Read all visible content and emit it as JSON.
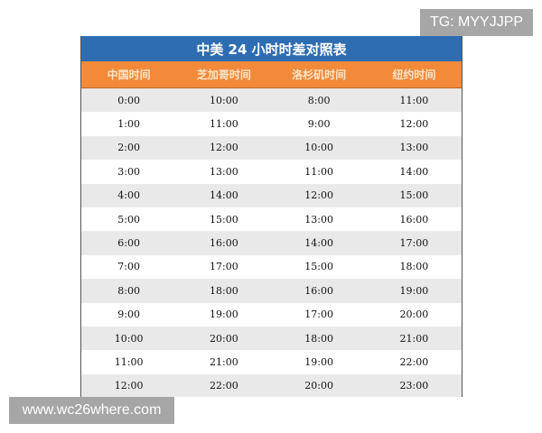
{
  "table": {
    "title": "中美 24 小时时差对照表",
    "headers": [
      "中国时间",
      "芝加哥时间",
      "洛杉矶时间",
      "纽约时间"
    ],
    "rows": [
      [
        "0:00",
        "10:00",
        "8:00",
        "11:00"
      ],
      [
        "1:00",
        "11:00",
        "9:00",
        "12:00"
      ],
      [
        "2:00",
        "12:00",
        "10:00",
        "13:00"
      ],
      [
        "3:00",
        "13:00",
        "11:00",
        "14:00"
      ],
      [
        "4:00",
        "14:00",
        "12:00",
        "15:00"
      ],
      [
        "5:00",
        "15:00",
        "13:00",
        "16:00"
      ],
      [
        "6:00",
        "16:00",
        "14:00",
        "17:00"
      ],
      [
        "7:00",
        "17:00",
        "15:00",
        "18:00"
      ],
      [
        "8:00",
        "18:00",
        "16:00",
        "19:00"
      ],
      [
        "9:00",
        "19:00",
        "17:00",
        "20:00"
      ],
      [
        "10:00",
        "20:00",
        "18:00",
        "21:00"
      ],
      [
        "11:00",
        "21:00",
        "19:00",
        "22:00"
      ],
      [
        "12:00",
        "22:00",
        "20:00",
        "23:00"
      ]
    ],
    "colors": {
      "title_bg": "#2f6db3",
      "header_bg": "#f28a3a"
    }
  },
  "overlays": {
    "tg_label": "TG: MYYJJPP",
    "site_label": "www.wc26where.com"
  }
}
